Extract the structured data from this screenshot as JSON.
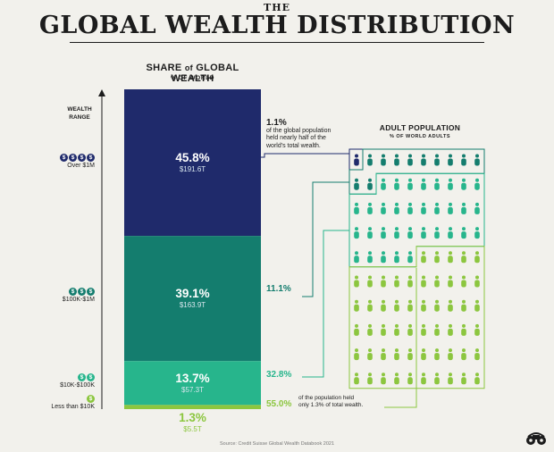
{
  "header": {
    "the": "THE",
    "title": "GLOBAL WEALTH DISTRIBUTION"
  },
  "share_title": {
    "main": "SHARE",
    "of": "of",
    "rest": "GLOBAL WEALTH",
    "sub": "% OF WORLD"
  },
  "axis_label": {
    "line1": "WEALTH",
    "line2": "RANGE"
  },
  "ranges": [
    {
      "coins": [
        "$",
        "$",
        "$",
        "$"
      ],
      "label": "Over $1M",
      "color": "#1f2a6b"
    },
    {
      "coins": [
        "$",
        "$",
        "$"
      ],
      "label": "$100K-$1M",
      "color": "#147d6e"
    },
    {
      "coins": [
        "$",
        "$"
      ],
      "label": "$10K-$100K",
      "color": "#27b58c"
    },
    {
      "coins": [
        "$"
      ],
      "label": "Less than $10K",
      "color": "#8cc63f"
    }
  ],
  "chart_data": {
    "type": "bar",
    "title": "GLOBAL WEALTH DISTRIBUTION",
    "categories": [
      "Over $1M",
      "$100K-$1M",
      "$10K-$100K",
      "Less than $10K"
    ],
    "series": [
      {
        "name": "SHARE of GLOBAL WEALTH",
        "values": [
          45.8,
          39.1,
          13.7,
          1.3
        ]
      },
      {
        "name": "ADULT POPULATION",
        "values": [
          1.1,
          11.1,
          32.8,
          55.0
        ]
      }
    ],
    "wealth_value_labels": [
      "$191.6T",
      "$163.9T",
      "$57.3T",
      "$5.5T"
    ],
    "pct_labels": [
      "45.8%",
      "39.1%",
      "13.7%",
      "1.3%"
    ],
    "colors": [
      "#1f2a6b",
      "#147d6e",
      "#27b58c",
      "#8cc63f"
    ]
  },
  "population": {
    "title": "ADULT POPULATION",
    "sub": "% OF WORLD ADULTS",
    "icon": "person-icon"
  },
  "annotations": {
    "top_pct": "1.1%",
    "top_text_l1": "of the global population",
    "top_text_l2": "held nearly half of the",
    "top_text_l3": "world's total wealth.",
    "second_pct": "11.1%",
    "third_pct": "32.8%",
    "bottom_pct": "55.0%",
    "bottom_text_l1": "of the population held",
    "bottom_text_l2": "only 1.3% of total wealth."
  },
  "source": "Source: Credit Suisse Global Wealth Databook 2021",
  "logo": "binoculars-logo-icon"
}
